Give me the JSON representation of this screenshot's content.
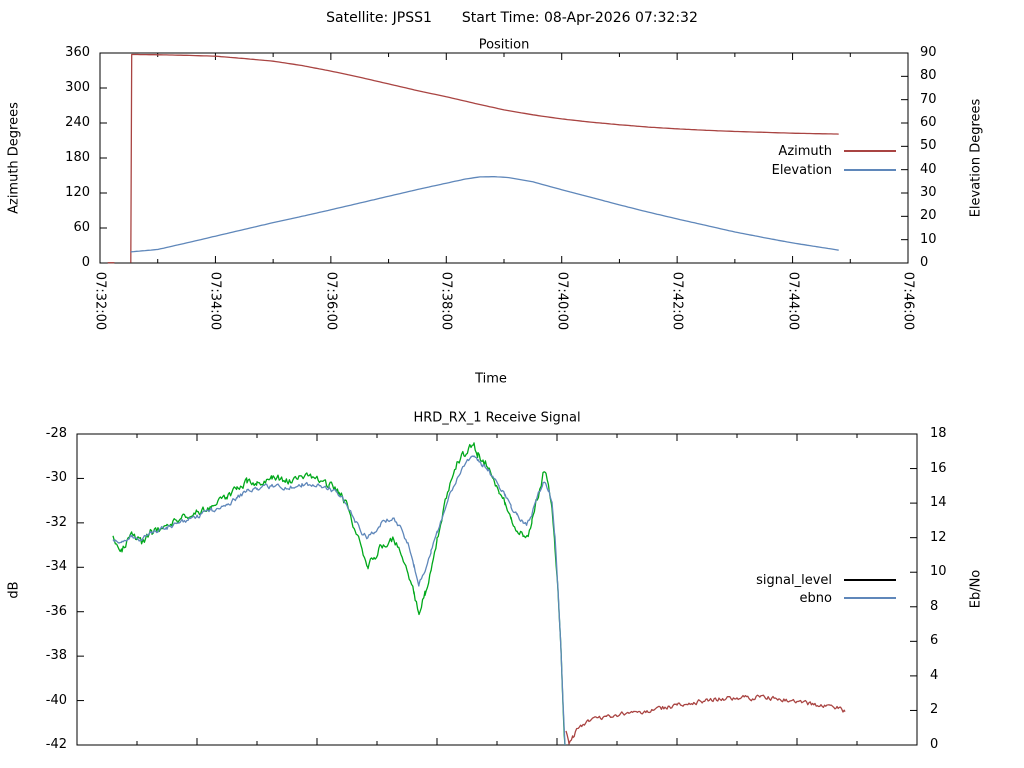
{
  "header": {
    "satellite_label": "Satellite: JPSS1",
    "start_time_label": "Start Time: 08-Apr-2026 07:32:32"
  },
  "accent_colors": {
    "azimuth_red": "#a94442",
    "elevation_blue": "#5f87ba",
    "signal_green": "#00a81a",
    "legend_black": "#000000",
    "axis_black": "#000000"
  },
  "chart_data": [
    {
      "type": "line",
      "title": "Position",
      "xlabel": "Time",
      "ylabel_left": "Azimuth Degrees",
      "ylabel_right": "Elevation Degrees",
      "x_axis": {
        "start_label": "07:32:00",
        "end_label": "07:46:00",
        "range_seconds": [
          0,
          840
        ],
        "major_tick_seconds": [
          0,
          120,
          240,
          360,
          480,
          600,
          720,
          840
        ],
        "major_tick_labels": [
          "07:32:00",
          "07:34:00",
          "07:36:00",
          "07:38:00",
          "07:40:00",
          "07:42:00",
          "07:44:00",
          "07:46:00"
        ],
        "minor_tick_seconds": [
          60,
          180,
          300,
          420,
          540,
          660,
          780
        ],
        "labels_visible": true
      },
      "y_left": {
        "ylim": [
          0,
          360
        ],
        "ticks": [
          0,
          60,
          120,
          180,
          240,
          300,
          360
        ]
      },
      "y_right": {
        "ylim": [
          0,
          90
        ],
        "ticks": [
          0,
          10,
          20,
          30,
          40,
          50,
          60,
          70,
          80,
          90
        ]
      },
      "legend": [
        {
          "label": "Azimuth",
          "color": "#a94442"
        },
        {
          "label": "Elevation",
          "color": "#5f87ba"
        }
      ],
      "series": [
        {
          "id": "azimuth-pre-track",
          "color": "#a94442",
          "axis": "left",
          "noise": 0,
          "points": [
            [
              8,
              0.5
            ],
            [
              15,
              0.5
            ]
          ]
        },
        {
          "id": "azimuth",
          "color": "#a94442",
          "axis": "left",
          "noise": 0,
          "points": [
            [
              32,
              0.5
            ],
            [
              33,
              357.5
            ],
            [
              60,
              357
            ],
            [
              90,
              356
            ],
            [
              120,
              354.5
            ],
            [
              150,
              350.5
            ],
            [
              180,
              346
            ],
            [
              210,
              338.5
            ],
            [
              240,
              329
            ],
            [
              270,
              318.5
            ],
            [
              300,
              307
            ],
            [
              330,
              295.5
            ],
            [
              360,
              285
            ],
            [
              390,
              273.5
            ],
            [
              420,
              262.5
            ],
            [
              450,
              254
            ],
            [
              480,
              247
            ],
            [
              510,
              241.5
            ],
            [
              540,
              237
            ],
            [
              570,
              233
            ],
            [
              600,
              230
            ],
            [
              630,
              227.5
            ],
            [
              660,
              225.5
            ],
            [
              690,
              224
            ],
            [
              720,
              222.5
            ],
            [
              745,
              221.7
            ],
            [
              768,
              221
            ]
          ]
        },
        {
          "id": "elevation",
          "color": "#5f87ba",
          "axis": "right",
          "noise": 0,
          "points": [
            [
              32,
              4.8
            ],
            [
              60,
              5.8
            ],
            [
              90,
              8.6
            ],
            [
              120,
              11.5
            ],
            [
              150,
              14.4
            ],
            [
              180,
              17.3
            ],
            [
              210,
              20
            ],
            [
              240,
              22.8
            ],
            [
              270,
              25.7
            ],
            [
              300,
              28.6
            ],
            [
              330,
              31.5
            ],
            [
              360,
              34.2
            ],
            [
              380,
              36
            ],
            [
              395,
              36.9
            ],
            [
              410,
              37
            ],
            [
              425,
              36.6
            ],
            [
              450,
              34.8
            ],
            [
              480,
              31.4
            ],
            [
              510,
              28.2
            ],
            [
              540,
              24.9
            ],
            [
              570,
              21.8
            ],
            [
              600,
              18.9
            ],
            [
              630,
              16.1
            ],
            [
              660,
              13.3
            ],
            [
              690,
              10.9
            ],
            [
              720,
              8.6
            ],
            [
              745,
              7
            ],
            [
              768,
              5.5
            ]
          ]
        }
      ]
    },
    {
      "type": "line",
      "title": "HRD_RX_1 Receive Signal",
      "xlabel": "Time",
      "ylabel_left": "dB",
      "ylabel_right": "Eb/No",
      "x_axis": {
        "range_seconds": [
          0,
          840
        ],
        "major_tick_seconds": [
          0,
          120,
          240,
          360,
          480,
          600,
          720,
          840
        ],
        "minor_tick_seconds": [
          60,
          180,
          300,
          420,
          540,
          660,
          780
        ],
        "labels_visible": false
      },
      "y_left": {
        "ylim": [
          -42,
          -28
        ],
        "ticks": [
          -42,
          -40,
          -38,
          -36,
          -34,
          -32,
          -30,
          -28
        ]
      },
      "y_right": {
        "ylim": [
          0,
          18
        ],
        "ticks": [
          0,
          2,
          4,
          6,
          8,
          10,
          12,
          14,
          16,
          18
        ]
      },
      "legend": [
        {
          "label": "signal_level",
          "color": "#000000"
        },
        {
          "label": "ebno",
          "color": "#5f87ba"
        }
      ],
      "series": [
        {
          "id": "signal-trace-green",
          "color": "#00a81a",
          "axis": "left",
          "noise": 0.16,
          "points": [
            [
              36,
              -32.7
            ],
            [
              45,
              -33.1
            ],
            [
              55,
              -32.6
            ],
            [
              65,
              -32.9
            ],
            [
              75,
              -32.4
            ],
            [
              90,
              -32.1
            ],
            [
              105,
              -31.8
            ],
            [
              120,
              -31.5
            ],
            [
              135,
              -31.2
            ],
            [
              150,
              -30.9
            ],
            [
              160,
              -30.5
            ],
            [
              170,
              -30.2
            ],
            [
              180,
              -30.2
            ],
            [
              195,
              -30.0
            ],
            [
              210,
              -30.1
            ],
            [
              225,
              -29.9
            ],
            [
              240,
              -30.1
            ],
            [
              252,
              -30.3
            ],
            [
              262,
              -30.6
            ],
            [
              270,
              -31.2
            ],
            [
              278,
              -32.3
            ],
            [
              285,
              -33.3
            ],
            [
              291,
              -33.9
            ],
            [
              297,
              -33.6
            ],
            [
              304,
              -33.0
            ],
            [
              311,
              -32.8
            ],
            [
              317,
              -32.7
            ],
            [
              324,
              -33.3
            ],
            [
              331,
              -34.3
            ],
            [
              337,
              -35.2
            ],
            [
              342,
              -36.0
            ],
            [
              348,
              -35.2
            ],
            [
              354,
              -34.0
            ],
            [
              360,
              -32.8
            ],
            [
              367,
              -31.3
            ],
            [
              374,
              -30.1
            ],
            [
              381,
              -29.2
            ],
            [
              388,
              -28.9
            ],
            [
              394,
              -28.6
            ],
            [
              397,
              -28.5
            ],
            [
              401,
              -28.9
            ],
            [
              406,
              -29.2
            ],
            [
              411,
              -29.4
            ],
            [
              416,
              -29.9
            ],
            [
              422,
              -30.5
            ],
            [
              428,
              -31.1
            ],
            [
              434,
              -31.8
            ],
            [
              440,
              -32.3
            ],
            [
              446,
              -32.6
            ],
            [
              450,
              -32.7
            ],
            [
              455,
              -32.0
            ],
            [
              459,
              -31.2
            ],
            [
              463,
              -30.4
            ],
            [
              466,
              -29.9
            ],
            [
              469,
              -30.0
            ],
            [
              472,
              -30.4
            ],
            [
              475,
              -31.2
            ],
            [
              478,
              -33.0
            ],
            [
              481,
              -35.0
            ],
            [
              484,
              -37.5
            ],
            [
              486,
              -40.0
            ],
            [
              488,
              -42.3
            ]
          ]
        },
        {
          "id": "ebno-trace-blue",
          "color": "#5f87ba",
          "axis": "right",
          "noise": 0.12,
          "points": [
            [
              36,
              12.0
            ],
            [
              45,
              11.7
            ],
            [
              55,
              12.1
            ],
            [
              65,
              11.9
            ],
            [
              75,
              12.3
            ],
            [
              90,
              12.6
            ],
            [
              105,
              12.9
            ],
            [
              120,
              13.2
            ],
            [
              135,
              13.6
            ],
            [
              150,
              13.9
            ],
            [
              160,
              14.3
            ],
            [
              170,
              14.7
            ],
            [
              180,
              14.8
            ],
            [
              195,
              15.0
            ],
            [
              210,
              14.9
            ],
            [
              225,
              15.1
            ],
            [
              240,
              15.0
            ],
            [
              252,
              14.8
            ],
            [
              262,
              14.5
            ],
            [
              270,
              13.9
            ],
            [
              278,
              13.0
            ],
            [
              285,
              12.3
            ],
            [
              291,
              12.0
            ],
            [
              297,
              12.3
            ],
            [
              304,
              12.8
            ],
            [
              311,
              13.0
            ],
            [
              317,
              13.1
            ],
            [
              324,
              12.5
            ],
            [
              331,
              11.6
            ],
            [
              337,
              10.4
            ],
            [
              342,
              9.3
            ],
            [
              348,
              10.1
            ],
            [
              354,
              11.2
            ],
            [
              360,
              12.2
            ],
            [
              367,
              13.5
            ],
            [
              374,
              14.7
            ],
            [
              381,
              15.6
            ],
            [
              388,
              16.2
            ],
            [
              394,
              16.6
            ],
            [
              397,
              16.8
            ],
            [
              401,
              16.4
            ],
            [
              406,
              16.1
            ],
            [
              411,
              15.9
            ],
            [
              416,
              15.5
            ],
            [
              422,
              15.0
            ],
            [
              428,
              14.4
            ],
            [
              434,
              13.8
            ],
            [
              440,
              13.3
            ],
            [
              446,
              12.9
            ],
            [
              450,
              12.8
            ],
            [
              455,
              13.4
            ],
            [
              459,
              14.1
            ],
            [
              463,
              14.8
            ],
            [
              466,
              15.2
            ],
            [
              469,
              15.1
            ],
            [
              472,
              14.7
            ],
            [
              475,
              13.9
            ],
            [
              478,
              12.0
            ],
            [
              481,
              9.0
            ],
            [
              484,
              5.5
            ],
            [
              486,
              2.5
            ],
            [
              488,
              0.0
            ]
          ]
        },
        {
          "id": "post-los-noise-floor-red",
          "color": "#a94442",
          "axis": "left",
          "noise": 0.09,
          "points": [
            [
              489,
              -41.3
            ],
            [
              492,
              -41.9
            ],
            [
              496,
              -41.6
            ],
            [
              500,
              -41.3
            ],
            [
              505,
              -41.1
            ],
            [
              512,
              -40.9
            ],
            [
              520,
              -40.8
            ],
            [
              530,
              -40.75
            ],
            [
              540,
              -40.6
            ],
            [
              552,
              -40.6
            ],
            [
              564,
              -40.5
            ],
            [
              576,
              -40.45
            ],
            [
              590,
              -40.3
            ],
            [
              600,
              -40.2
            ],
            [
              612,
              -40.1
            ],
            [
              624,
              -40.05
            ],
            [
              636,
              -39.95
            ],
            [
              648,
              -39.9
            ],
            [
              660,
              -39.85
            ],
            [
              672,
              -39.9
            ],
            [
              684,
              -39.8
            ],
            [
              696,
              -39.9
            ],
            [
              708,
              -39.95
            ],
            [
              720,
              -40.05
            ],
            [
              732,
              -40.15
            ],
            [
              744,
              -40.25
            ],
            [
              752,
              -40.15
            ],
            [
              760,
              -40.3
            ],
            [
              768,
              -40.5
            ]
          ]
        }
      ]
    }
  ]
}
